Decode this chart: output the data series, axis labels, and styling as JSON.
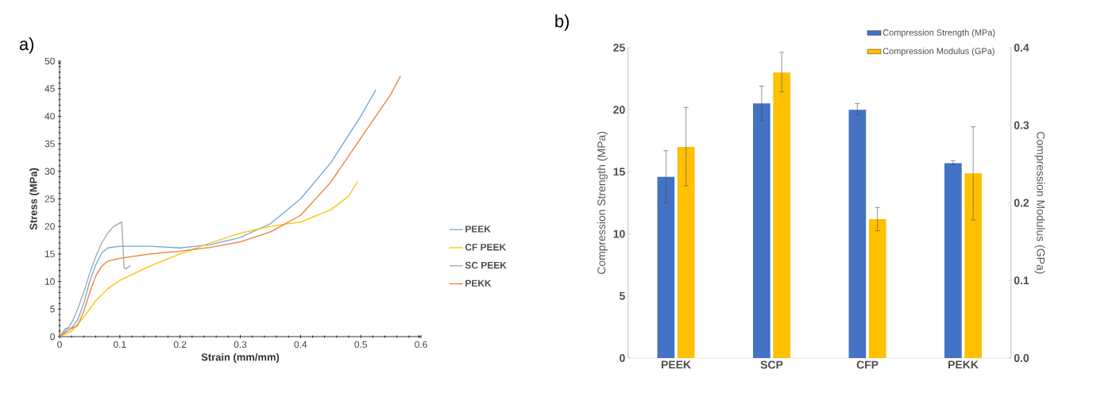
{
  "chart_data": [
    {
      "type": "line",
      "title": "a)",
      "xlabel": "Strain (mm/mm)",
      "ylabel": "Stress (MPa)",
      "xlim": [
        0,
        0.6
      ],
      "ylim": [
        0,
        50
      ],
      "xticks": [
        0,
        0.1,
        0.2,
        0.3,
        0.4,
        0.5,
        0.6
      ],
      "yticks": [
        0,
        5,
        10,
        15,
        20,
        25,
        30,
        35,
        40,
        45,
        50
      ],
      "legend": "right",
      "line_style": "solid",
      "series": [
        {
          "name": "PEEK",
          "color": "#6fa8dc",
          "x": [
            0,
            0.01,
            0.02,
            0.03,
            0.04,
            0.05,
            0.06,
            0.07,
            0.08,
            0.1,
            0.15,
            0.2,
            0.25,
            0.3,
            0.35,
            0.4,
            0.45,
            0.5,
            0.525
          ],
          "values": [
            0,
            1.5,
            1.6,
            3,
            6,
            10,
            13,
            15.2,
            16.1,
            16.4,
            16.4,
            16.1,
            16.7,
            18,
            20.5,
            25,
            31.5,
            40,
            44.8
          ]
        },
        {
          "name": "CF PEEK",
          "color": "#ffc000",
          "x": [
            0,
            0.02,
            0.04,
            0.06,
            0.08,
            0.1,
            0.15,
            0.2,
            0.25,
            0.3,
            0.35,
            0.4,
            0.45,
            0.48,
            0.495
          ],
          "values": [
            0,
            1,
            3.5,
            6.5,
            8.7,
            10.2,
            12.8,
            15,
            17,
            18.8,
            20,
            20.8,
            23,
            25.5,
            28.2
          ]
        },
        {
          "name": "SC PEEK",
          "color": "#a5a5a5",
          "x": [
            0,
            0.01,
            0.02,
            0.03,
            0.04,
            0.05,
            0.06,
            0.07,
            0.08,
            0.09,
            0.103,
            0.105,
            0.107,
            0.11,
            0.118
          ],
          "values": [
            0,
            1,
            2.5,
            5,
            8,
            11.5,
            14.5,
            17,
            18.8,
            20,
            20.8,
            17,
            12.5,
            12.3,
            12.9
          ]
        },
        {
          "name": "PEKK",
          "color": "#ed7d31",
          "x": [
            0,
            0.01,
            0.02,
            0.03,
            0.04,
            0.05,
            0.06,
            0.07,
            0.08,
            0.1,
            0.15,
            0.2,
            0.25,
            0.3,
            0.35,
            0.4,
            0.45,
            0.5,
            0.55,
            0.566
          ],
          "values": [
            0,
            0.8,
            1.5,
            2,
            4.5,
            8,
            11,
            12.8,
            13.7,
            14.2,
            15,
            15.5,
            16.2,
            17.2,
            19,
            22,
            28,
            36,
            44,
            47.3
          ]
        }
      ]
    },
    {
      "type": "bar",
      "title": "b)",
      "ylabel": "Compression Strength (MPa)",
      "y2label": "Compression Modulus (GPa)",
      "categories": [
        "PEEK",
        "SCP",
        "CFP",
        "PEKK"
      ],
      "ylim": [
        0,
        25
      ],
      "yticks": [
        0,
        5,
        10,
        15,
        20,
        25
      ],
      "y2lim": [
        0,
        0.4
      ],
      "y2ticks": [
        {
          "value": 0,
          "label": "0.0"
        },
        0.1,
        0.2,
        0.3,
        0.4
      ],
      "legend": "top right",
      "series": [
        {
          "name": "Compression Strength (MPa)",
          "color": "#4472c4",
          "values": [
            14.6,
            20.5,
            20.0,
            15.7
          ],
          "errors": [
            [
              12.5,
              16.7
            ],
            [
              19.1,
              21.9
            ],
            [
              19.6,
              20.5
            ],
            [
              15.6,
              15.9
            ]
          ]
        },
        {
          "name": "Compression Modulus (GPa)",
          "color": "#ffc000",
          "axis": "y2",
          "values": [
            0.272,
            0.368,
            0.179,
            0.238
          ],
          "errors": [
            [
              0.222,
              0.323
            ],
            [
              0.343,
              0.394
            ],
            [
              0.164,
              0.194
            ],
            [
              0.178,
              0.298
            ]
          ]
        }
      ]
    }
  ]
}
